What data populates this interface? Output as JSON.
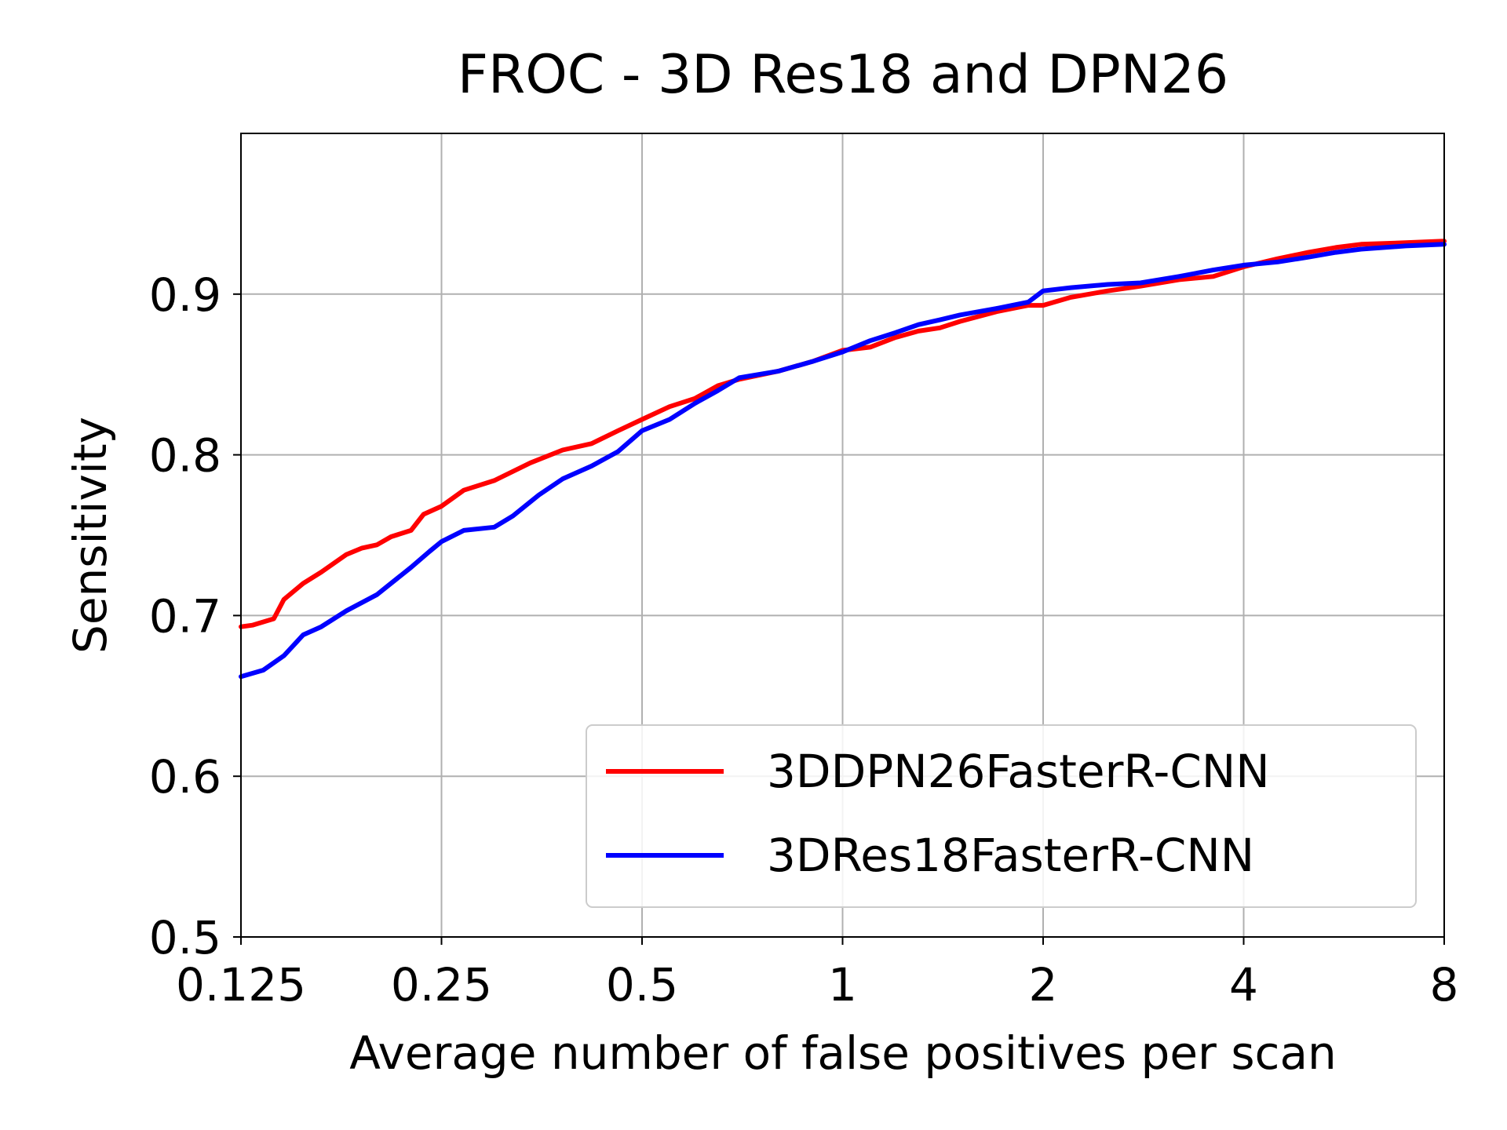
{
  "chart_data": {
    "type": "line",
    "title": "FROC - 3D Res18 and DPN26",
    "xlabel": "Average number of false positives per scan",
    "ylabel": "Sensitivity",
    "xscale": "log2",
    "xlim": [
      0.125,
      8
    ],
    "ylim": [
      0.5,
      1.0
    ],
    "grid": true,
    "legend_position": "lower-right",
    "x_ticks": [
      {
        "value": 0.125,
        "label": "0.125"
      },
      {
        "value": 0.25,
        "label": "0.25"
      },
      {
        "value": 0.5,
        "label": "0.5"
      },
      {
        "value": 1,
        "label": "1"
      },
      {
        "value": 2,
        "label": "2"
      },
      {
        "value": 4,
        "label": "4"
      },
      {
        "value": 8,
        "label": "8"
      }
    ],
    "y_ticks": [
      {
        "value": 0.5,
        "label": "0.5"
      },
      {
        "value": 0.6,
        "label": "0.6"
      },
      {
        "value": 0.7,
        "label": "0.7"
      },
      {
        "value": 0.8,
        "label": "0.8"
      },
      {
        "value": 0.9,
        "label": "0.9"
      }
    ],
    "series": [
      {
        "name": "3DDPN26FasterR-CNN",
        "color": "#ff0000",
        "x": [
          0.125,
          0.13,
          0.14,
          0.145,
          0.155,
          0.165,
          0.18,
          0.19,
          0.2,
          0.21,
          0.225,
          0.235,
          0.25,
          0.27,
          0.3,
          0.34,
          0.38,
          0.42,
          0.46,
          0.5,
          0.55,
          0.6,
          0.65,
          0.7,
          0.8,
          0.9,
          1.0,
          1.1,
          1.2,
          1.3,
          1.4,
          1.5,
          1.7,
          1.9,
          2.0,
          2.2,
          2.5,
          2.8,
          3.2,
          3.6,
          4.0,
          4.5,
          5.0,
          5.5,
          6.0,
          7.0,
          8.0
        ],
        "y": [
          0.693,
          0.694,
          0.698,
          0.71,
          0.72,
          0.727,
          0.738,
          0.742,
          0.744,
          0.749,
          0.753,
          0.763,
          0.768,
          0.778,
          0.784,
          0.795,
          0.803,
          0.807,
          0.815,
          0.822,
          0.83,
          0.835,
          0.843,
          0.847,
          0.852,
          0.858,
          0.865,
          0.867,
          0.873,
          0.877,
          0.879,
          0.883,
          0.889,
          0.893,
          0.893,
          0.898,
          0.902,
          0.905,
          0.909,
          0.911,
          0.917,
          0.922,
          0.926,
          0.929,
          0.931,
          0.932,
          0.933
        ]
      },
      {
        "name": "3DRes18FasterR-CNN",
        "color": "#0000ff",
        "x": [
          0.125,
          0.135,
          0.145,
          0.155,
          0.165,
          0.18,
          0.2,
          0.21,
          0.225,
          0.24,
          0.25,
          0.27,
          0.3,
          0.32,
          0.35,
          0.38,
          0.42,
          0.46,
          0.5,
          0.55,
          0.6,
          0.65,
          0.7,
          0.8,
          0.9,
          1.0,
          1.1,
          1.2,
          1.3,
          1.4,
          1.5,
          1.7,
          1.9,
          2.0,
          2.2,
          2.5,
          2.8,
          3.2,
          3.6,
          4.0,
          4.5,
          5.0,
          5.5,
          6.0,
          7.0,
          8.0
        ],
        "y": [
          0.662,
          0.666,
          0.675,
          0.688,
          0.693,
          0.703,
          0.713,
          0.72,
          0.73,
          0.74,
          0.746,
          0.753,
          0.755,
          0.762,
          0.775,
          0.785,
          0.793,
          0.802,
          0.815,
          0.822,
          0.832,
          0.84,
          0.848,
          0.852,
          0.858,
          0.864,
          0.871,
          0.876,
          0.881,
          0.884,
          0.887,
          0.891,
          0.895,
          0.902,
          0.904,
          0.906,
          0.907,
          0.911,
          0.915,
          0.918,
          0.92,
          0.923,
          0.926,
          0.928,
          0.93,
          0.931
        ]
      }
    ]
  }
}
